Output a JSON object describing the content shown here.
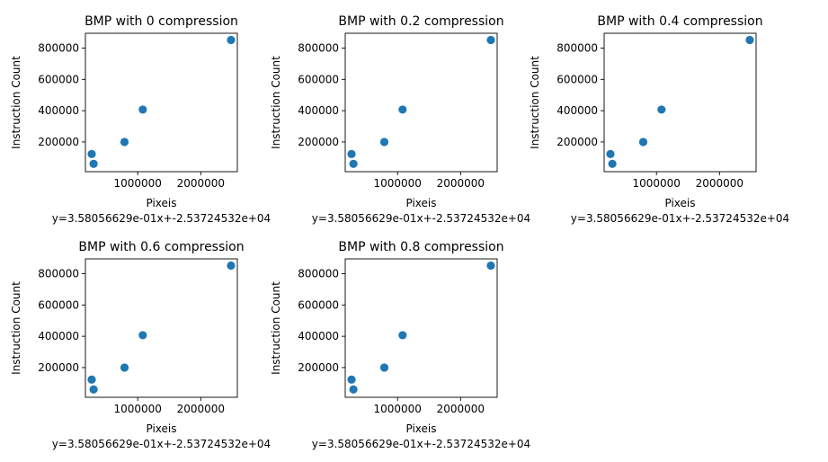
{
  "chart_data": [
    {
      "type": "scatter",
      "title": "BMP with 0 compression",
      "xlabel": "Pixeis",
      "ylabel": "Instruction Count",
      "equation": "y=3.58056629e-01x+-2.53724532e+04",
      "xlim": [
        170000,
        2580000
      ],
      "ylim": [
        10000,
        895000
      ],
      "xticks": [
        1000000,
        2000000
      ],
      "xtick_labels": [
        "1000000",
        "2000000"
      ],
      "yticks": [
        200000,
        400000,
        600000,
        800000
      ],
      "ytick_labels": [
        "200000",
        "400000",
        "600000",
        "800000"
      ],
      "points": [
        {
          "x": 270000,
          "y": 123000
        },
        {
          "x": 300000,
          "y": 60000
        },
        {
          "x": 790000,
          "y": 200000
        },
        {
          "x": 1080000,
          "y": 407000
        },
        {
          "x": 2480000,
          "y": 852000
        }
      ],
      "color": "#1f77b4"
    },
    {
      "type": "scatter",
      "title": "BMP with 0.2 compression",
      "xlabel": "Pixeis",
      "ylabel": "Instruction Count",
      "equation": "y=3.58056629e-01x+-2.53724532e+04",
      "xlim": [
        170000,
        2580000
      ],
      "ylim": [
        10000,
        895000
      ],
      "xticks": [
        1000000,
        2000000
      ],
      "xtick_labels": [
        "1000000",
        "2000000"
      ],
      "yticks": [
        200000,
        400000,
        600000,
        800000
      ],
      "ytick_labels": [
        "200000",
        "400000",
        "600000",
        "800000"
      ],
      "points": [
        {
          "x": 270000,
          "y": 123000
        },
        {
          "x": 300000,
          "y": 60000
        },
        {
          "x": 790000,
          "y": 200000
        },
        {
          "x": 1080000,
          "y": 407000
        },
        {
          "x": 2480000,
          "y": 852000
        }
      ],
      "color": "#1f77b4"
    },
    {
      "type": "scatter",
      "title": "BMP with 0.4 compression",
      "xlabel": "Pixeis",
      "ylabel": "Instruction Count",
      "equation": "y=3.58056629e-01x+-2.53724532e+04",
      "xlim": [
        170000,
        2580000
      ],
      "ylim": [
        10000,
        895000
      ],
      "xticks": [
        1000000,
        2000000
      ],
      "xtick_labels": [
        "1000000",
        "2000000"
      ],
      "yticks": [
        200000,
        400000,
        600000,
        800000
      ],
      "ytick_labels": [
        "200000",
        "400000",
        "600000",
        "800000"
      ],
      "points": [
        {
          "x": 270000,
          "y": 123000
        },
        {
          "x": 300000,
          "y": 60000
        },
        {
          "x": 790000,
          "y": 200000
        },
        {
          "x": 1080000,
          "y": 407000
        },
        {
          "x": 2480000,
          "y": 852000
        }
      ],
      "color": "#1f77b4"
    },
    {
      "type": "scatter",
      "title": "BMP with 0.6 compression",
      "xlabel": "Pixeis",
      "ylabel": "Instruction Count",
      "equation": "y=3.58056629e-01x+-2.53724532e+04",
      "xlim": [
        170000,
        2580000
      ],
      "ylim": [
        10000,
        895000
      ],
      "xticks": [
        1000000,
        2000000
      ],
      "xtick_labels": [
        "1000000",
        "2000000"
      ],
      "yticks": [
        200000,
        400000,
        600000,
        800000
      ],
      "ytick_labels": [
        "200000",
        "400000",
        "600000",
        "800000"
      ],
      "points": [
        {
          "x": 270000,
          "y": 123000
        },
        {
          "x": 300000,
          "y": 60000
        },
        {
          "x": 790000,
          "y": 200000
        },
        {
          "x": 1080000,
          "y": 407000
        },
        {
          "x": 2480000,
          "y": 852000
        }
      ],
      "color": "#1f77b4"
    },
    {
      "type": "scatter",
      "title": "BMP with 0.8 compression",
      "xlabel": "Pixeis",
      "ylabel": "Instruction Count",
      "equation": "y=3.58056629e-01x+-2.53724532e+04",
      "xlim": [
        170000,
        2580000
      ],
      "ylim": [
        10000,
        895000
      ],
      "xticks": [
        1000000,
        2000000
      ],
      "xtick_labels": [
        "1000000",
        "2000000"
      ],
      "yticks": [
        200000,
        400000,
        600000,
        800000
      ],
      "ytick_labels": [
        "200000",
        "400000",
        "600000",
        "800000"
      ],
      "points": [
        {
          "x": 270000,
          "y": 123000
        },
        {
          "x": 300000,
          "y": 60000
        },
        {
          "x": 790000,
          "y": 200000
        },
        {
          "x": 1080000,
          "y": 407000
        },
        {
          "x": 2480000,
          "y": 852000
        }
      ],
      "color": "#1f77b4"
    }
  ]
}
